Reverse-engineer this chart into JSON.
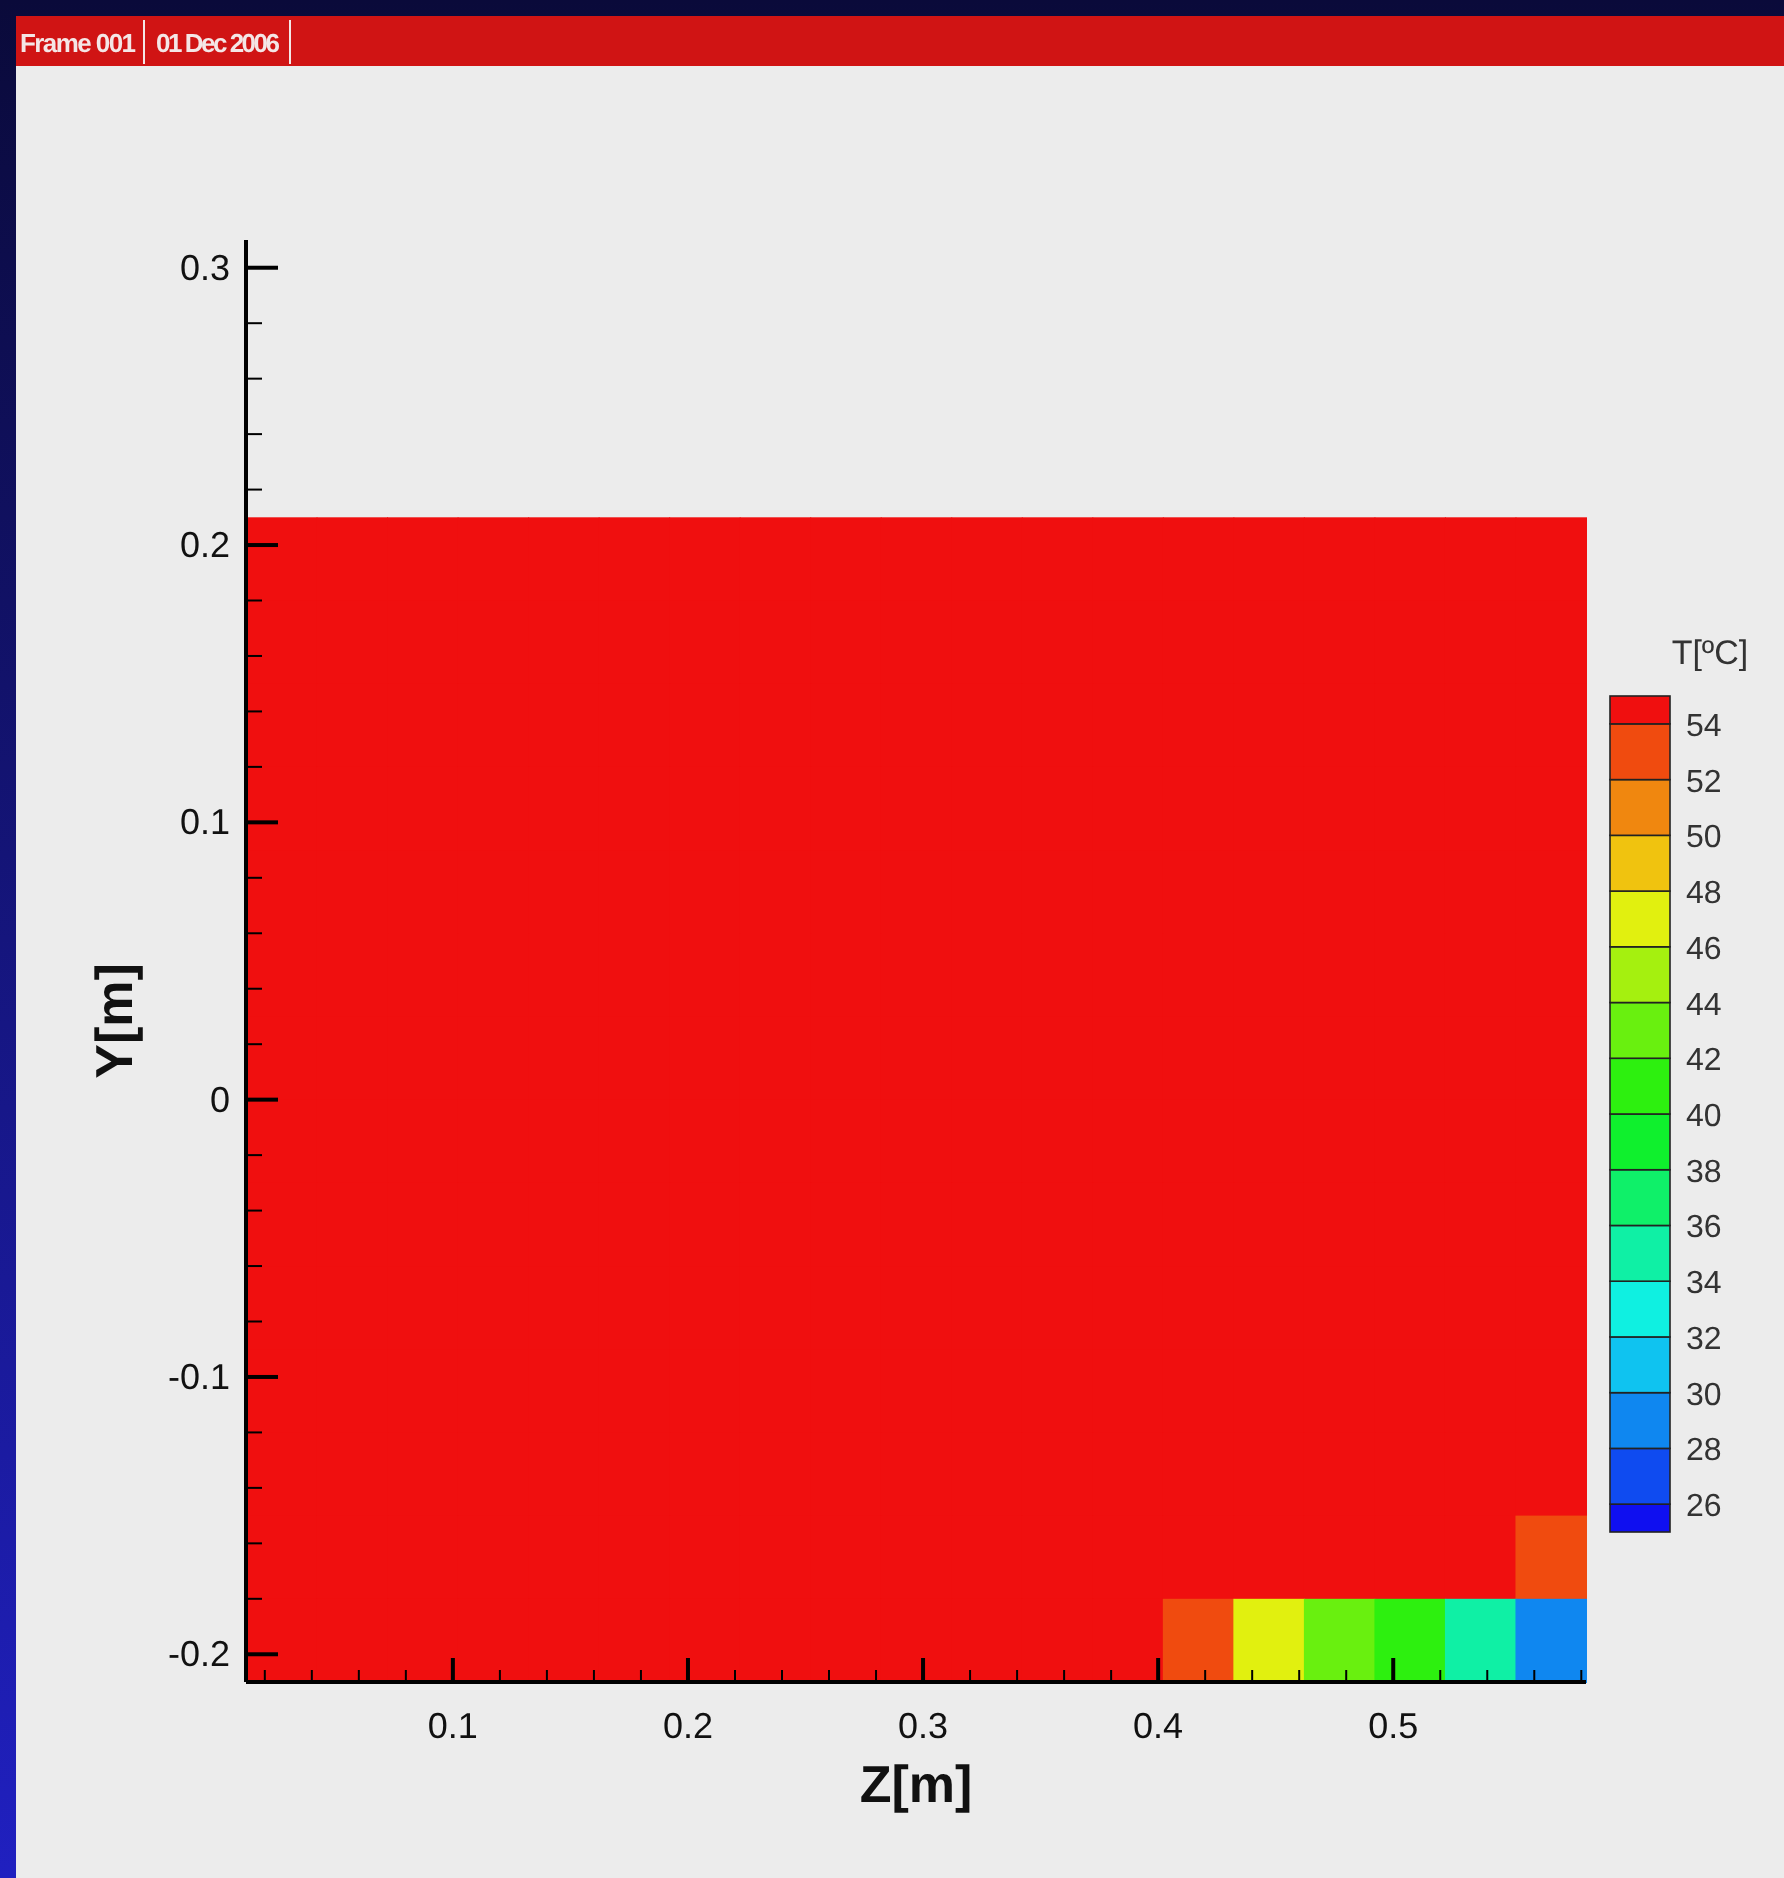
{
  "chart_data": {
    "type": "scatter",
    "marker": "square",
    "xlabel": "Z[m]",
    "ylabel": "Y[m]",
    "clabel": "T[ºC]",
    "annotations": [
      "Frame 001",
      "01 Dec 2006"
    ],
    "xlim": [
      0.012,
      0.582
    ],
    "ylim": [
      -0.21,
      0.31
    ],
    "xticks": [
      {
        "value": 0.02,
        "label": null
      },
      {
        "value": 0.04,
        "label": null
      },
      {
        "value": 0.06,
        "label": null
      },
      {
        "value": 0.08,
        "label": null
      },
      0.1,
      {
        "value": 0.12,
        "label": null
      },
      {
        "value": 0.14,
        "label": null
      },
      {
        "value": 0.16,
        "label": null
      },
      {
        "value": 0.18,
        "label": null
      },
      0.2,
      {
        "value": 0.22,
        "label": null
      },
      {
        "value": 0.24,
        "label": null
      },
      {
        "value": 0.26,
        "label": null
      },
      {
        "value": 0.28,
        "label": null
      },
      0.3,
      {
        "value": 0.32,
        "label": null
      },
      {
        "value": 0.34,
        "label": null
      },
      {
        "value": 0.36,
        "label": null
      },
      {
        "value": 0.38,
        "label": null
      },
      0.4,
      {
        "value": 0.42,
        "label": null
      },
      {
        "value": 0.44,
        "label": null
      },
      {
        "value": 0.46,
        "label": null
      },
      {
        "value": 0.48,
        "label": null
      },
      0.5,
      {
        "value": 0.52,
        "label": null
      },
      {
        "value": 0.54,
        "label": null
      },
      {
        "value": 0.56,
        "label": null
      },
      {
        "value": 0.58,
        "label": null
      }
    ],
    "yticks": [
      -0.2,
      {
        "value": -0.18,
        "label": null
      },
      {
        "value": -0.16,
        "label": null
      },
      {
        "value": -0.14,
        "label": null
      },
      {
        "value": -0.12,
        "label": null
      },
      -0.1,
      {
        "value": -0.08,
        "label": null
      },
      {
        "value": -0.06,
        "label": null
      },
      {
        "value": -0.04,
        "label": null
      },
      {
        "value": -0.02,
        "label": null
      },
      0,
      {
        "value": 0.02,
        "label": null
      },
      {
        "value": 0.04,
        "label": null
      },
      {
        "value": 0.06,
        "label": null
      },
      {
        "value": 0.08,
        "label": null
      },
      0.1,
      {
        "value": 0.12,
        "label": null
      },
      {
        "value": 0.14,
        "label": null
      },
      {
        "value": 0.16,
        "label": null
      },
      {
        "value": 0.18,
        "label": null
      },
      0.2,
      {
        "value": 0.22,
        "label": null
      },
      {
        "value": 0.24,
        "label": null
      },
      {
        "value": 0.26,
        "label": null
      },
      {
        "value": 0.28,
        "label": null
      },
      0.3
    ],
    "clim": [
      25,
      55
    ],
    "cticks": [
      26,
      28,
      30,
      32,
      34,
      36,
      38,
      40,
      42,
      44,
      46,
      48,
      50,
      52,
      54
    ],
    "x": [
      0.027,
      0.057,
      0.087,
      0.117,
      0.147,
      0.177,
      0.207,
      0.237,
      0.267,
      0.297,
      0.327,
      0.357,
      0.387,
      0.417,
      0.447,
      0.477,
      0.507,
      0.537,
      0.567,
      0.027,
      0.057,
      0.087,
      0.117,
      0.147,
      0.177,
      0.207,
      0.237,
      0.267,
      0.297,
      0.327,
      0.357,
      0.387,
      0.417,
      0.447,
      0.477,
      0.507,
      0.537,
      0.567,
      0.027,
      0.057,
      0.087,
      0.117,
      0.147,
      0.177,
      0.207,
      0.237,
      0.267,
      0.297,
      0.327,
      0.357,
      0.387,
      0.417,
      0.447,
      0.477,
      0.507,
      0.537,
      0.567,
      0.027,
      0.057,
      0.087,
      0.117,
      0.147,
      0.177,
      0.207,
      0.237,
      0.267,
      0.297,
      0.327,
      0.357,
      0.387,
      0.417,
      0.447,
      0.477,
      0.507,
      0.537,
      0.567,
      0.027,
      0.057,
      0.087,
      0.117,
      0.147,
      0.177,
      0.207,
      0.237,
      0.267,
      0.297,
      0.327,
      0.357,
      0.387,
      0.417,
      0.447,
      0.477,
      0.507,
      0.537,
      0.567,
      0.027,
      0.057,
      0.087,
      0.117,
      0.147,
      0.177,
      0.207,
      0.237,
      0.267,
      0.297,
      0.327,
      0.357,
      0.387,
      0.417,
      0.447,
      0.477,
      0.507,
      0.537,
      0.567,
      0.027,
      0.057,
      0.087,
      0.117,
      0.147,
      0.177,
      0.207,
      0.237,
      0.267,
      0.297,
      0.327,
      0.357,
      0.387,
      0.417,
      0.447,
      0.477,
      0.507,
      0.537,
      0.567,
      0.027,
      0.057,
      0.087,
      0.117,
      0.147,
      0.177,
      0.207,
      0.237,
      0.267,
      0.297,
      0.327,
      0.357,
      0.387,
      0.417,
      0.447,
      0.477,
      0.507,
      0.537,
      0.567,
      0.027,
      0.057,
      0.087,
      0.117,
      0.147,
      0.177,
      0.207,
      0.237,
      0.267,
      0.297,
      0.327,
      0.357,
      0.387,
      0.417,
      0.447,
      0.477,
      0.507,
      0.537,
      0.567,
      0.027,
      0.057,
      0.087,
      0.117,
      0.147,
      0.177,
      0.207,
      0.237,
      0.267,
      0.297,
      0.327,
      0.357,
      0.387,
      0.417,
      0.447,
      0.477,
      0.507,
      0.537,
      0.567,
      0.027,
      0.057,
      0.087,
      0.117,
      0.147,
      0.177,
      0.207,
      0.237,
      0.267,
      0.297,
      0.327,
      0.357,
      0.387,
      0.417,
      0.447,
      0.477,
      0.507,
      0.537,
      0.567,
      0.027,
      0.057,
      0.087,
      0.117,
      0.147,
      0.177,
      0.207,
      0.237,
      0.267,
      0.297,
      0.327,
      0.357,
      0.387,
      0.417,
      0.447,
      0.477,
      0.507,
      0.537,
      0.567,
      0.027,
      0.057,
      0.087,
      0.117,
      0.147,
      0.177,
      0.207,
      0.237,
      0.267,
      0.297,
      0.327,
      0.357,
      0.387,
      0.417,
      0.447,
      0.477,
      0.507,
      0.537,
      0.567,
      0.027,
      0.057,
      0.087,
      0.117,
      0.147,
      0.177,
      0.207,
      0.237,
      0.267,
      0.297,
      0.327,
      0.357,
      0.387,
      0.417,
      0.447,
      0.477,
      0.507,
      0.537,
      0.567
    ],
    "values": [
      0.195,
      0.195,
      0.195,
      0.195,
      0.195,
      0.195,
      0.195,
      0.195,
      0.195,
      0.195,
      0.195,
      0.195,
      0.195,
      0.195,
      0.195,
      0.195,
      0.195,
      0.195,
      0.195,
      0.165,
      0.165,
      0.165,
      0.165,
      0.165,
      0.165,
      0.165,
      0.165,
      0.165,
      0.165,
      0.165,
      0.165,
      0.165,
      0.165,
      0.165,
      0.165,
      0.165,
      0.165,
      0.165,
      0.135,
      0.135,
      0.135,
      0.135,
      0.135,
      0.135,
      0.135,
      0.135,
      0.135,
      0.135,
      0.135,
      0.135,
      0.135,
      0.135,
      0.135,
      0.135,
      0.135,
      0.135,
      0.135,
      0.105,
      0.105,
      0.105,
      0.105,
      0.105,
      0.105,
      0.105,
      0.105,
      0.105,
      0.105,
      0.105,
      0.105,
      0.105,
      0.105,
      0.105,
      0.105,
      0.105,
      0.105,
      0.105,
      0.075,
      0.075,
      0.075,
      0.075,
      0.075,
      0.075,
      0.075,
      0.075,
      0.075,
      0.075,
      0.075,
      0.075,
      0.075,
      0.075,
      0.075,
      0.075,
      0.075,
      0.075,
      0.075,
      0.045,
      0.045,
      0.045,
      0.045,
      0.045,
      0.045,
      0.045,
      0.045,
      0.045,
      0.045,
      0.045,
      0.045,
      0.045,
      0.045,
      0.045,
      0.045,
      0.045,
      0.045,
      0.045,
      0.015,
      0.015,
      0.015,
      0.015,
      0.015,
      0.015,
      0.015,
      0.015,
      0.015,
      0.015,
      0.015,
      0.015,
      0.015,
      0.015,
      0.015,
      0.015,
      0.015,
      0.015,
      0.015,
      -0.015,
      -0.015,
      -0.015,
      -0.015,
      -0.015,
      -0.015,
      -0.015,
      -0.015,
      -0.015,
      -0.015,
      -0.015,
      -0.015,
      -0.015,
      -0.015,
      -0.015,
      -0.015,
      -0.015,
      -0.015,
      -0.015,
      -0.045,
      -0.045,
      -0.045,
      -0.045,
      -0.045,
      -0.045,
      -0.045,
      -0.045,
      -0.045,
      -0.045,
      -0.045,
      -0.045,
      -0.045,
      -0.045,
      -0.045,
      -0.045,
      -0.045,
      -0.045,
      -0.045,
      -0.075,
      -0.075,
      -0.075,
      -0.075,
      -0.075,
      -0.075,
      -0.075,
      -0.075,
      -0.075,
      -0.075,
      -0.075,
      -0.075,
      -0.075,
      -0.075,
      -0.075,
      -0.075,
      -0.075,
      -0.075,
      -0.075,
      -0.105,
      -0.105,
      -0.105,
      -0.105,
      -0.105,
      -0.105,
      -0.105,
      -0.105,
      -0.105,
      -0.105,
      -0.105,
      -0.105,
      -0.105,
      -0.105,
      -0.105,
      -0.105,
      -0.105,
      -0.105,
      -0.105,
      -0.135,
      -0.135,
      -0.135,
      -0.135,
      -0.135,
      -0.135,
      -0.135,
      -0.135,
      -0.135,
      -0.135,
      -0.135,
      -0.135,
      -0.135,
      -0.135,
      -0.135,
      -0.135,
      -0.135,
      -0.135,
      -0.135,
      -0.165,
      -0.165,
      -0.165,
      -0.165,
      -0.165,
      -0.165,
      -0.165,
      -0.165,
      -0.165,
      -0.165,
      -0.165,
      -0.165,
      -0.165,
      -0.165,
      -0.165,
      -0.165,
      -0.165,
      -0.165,
      -0.165,
      -0.195,
      -0.195,
      -0.195,
      -0.195,
      -0.195,
      -0.195,
      -0.195,
      -0.195,
      -0.195,
      -0.195,
      -0.195,
      -0.195,
      -0.195,
      -0.195,
      -0.195,
      -0.195,
      -0.195,
      -0.195,
      -0.195
    ],
    "cvalues": [
      55,
      55,
      55,
      55,
      55,
      55,
      55,
      55,
      55,
      55,
      55,
      55,
      55,
      55,
      55,
      55,
      55,
      55,
      55,
      55,
      55,
      55,
      55,
      55,
      55,
      55,
      55,
      55,
      55,
      55,
      55,
      55,
      55,
      55,
      55,
      55,
      55,
      55,
      55,
      55,
      55,
      55,
      55,
      55,
      55,
      55,
      55,
      55,
      55,
      55,
      55,
      55,
      55,
      55,
      55,
      55,
      55,
      55,
      55,
      55,
      55,
      55,
      55,
      55,
      55,
      55,
      55,
      55,
      55,
      55,
      55,
      55,
      55,
      55,
      55,
      55,
      55,
      55,
      55,
      55,
      55,
      55,
      55,
      55,
      55,
      55,
      55,
      55,
      55,
      55,
      55,
      55,
      55,
      55,
      55,
      55,
      55,
      55,
      55,
      55,
      55,
      55,
      55,
      55,
      55,
      55,
      55,
      55,
      55,
      55,
      55,
      55,
      55,
      55,
      55,
      55,
      55,
      55,
      55,
      55,
      55,
      55,
      55,
      55,
      55,
      55,
      55,
      55,
      55,
      55,
      55,
      55,
      55,
      55,
      55,
      55,
      55,
      55,
      55,
      55,
      55,
      55,
      55,
      55,
      55,
      55,
      55,
      55,
      55,
      55,
      55,
      55,
      55,
      55,
      55,
      55,
      55,
      55,
      55,
      55,
      55,
      55,
      55,
      55,
      55,
      55,
      55,
      55,
      55,
      55,
      55,
      55,
      55,
      55,
      55,
      55,
      55,
      55,
      55,
      55,
      55,
      55,
      55,
      55,
      55,
      55,
      55,
      55,
      55,
      55,
      55,
      55,
      55,
      55,
      55,
      55,
      55,
      55,
      55,
      55,
      55,
      55,
      55,
      55,
      55,
      55,
      55,
      55,
      55,
      55,
      55,
      55,
      55,
      55,
      55,
      55,
      55,
      55,
      55,
      55,
      55,
      55,
      55,
      55,
      55,
      55,
      55,
      55,
      55,
      55,
      55,
      55,
      55,
      55,
      55,
      55,
      55,
      55,
      55,
      55,
      55,
      55,
      55,
      55,
      55,
      55,
      52,
      55,
      55,
      55,
      55,
      55,
      55,
      55,
      55,
      55,
      55,
      55,
      55,
      55,
      52,
      46,
      42,
      40,
      34,
      28
    ]
  }
}
